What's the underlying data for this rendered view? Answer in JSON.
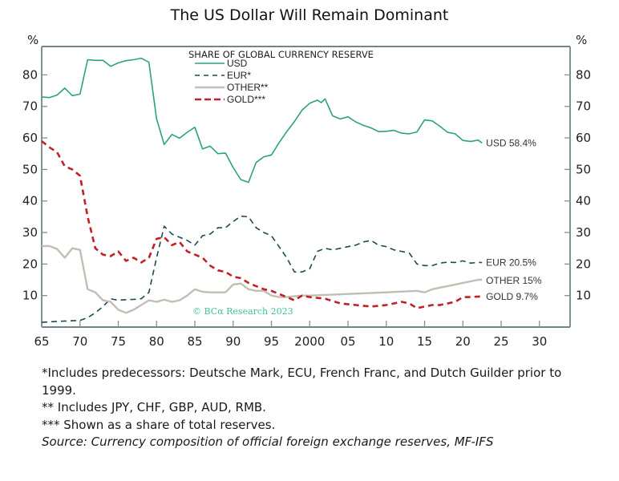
{
  "chart_data": {
    "type": "line",
    "title": "The US Dollar Will Remain Dominant",
    "legend_title": "SHARE OF GLOBAL CURRENCY RESERVE",
    "legend_position": "top-center",
    "ylabel_left": "%",
    "ylabel_right": "%",
    "xlabel": "",
    "xlim": [
      1965,
      2034
    ],
    "ylim": [
      0,
      89
    ],
    "y_ticks": [
      10,
      20,
      30,
      40,
      50,
      60,
      70,
      80
    ],
    "y_tick_labels": [
      "10",
      "20",
      "30",
      "40",
      "50",
      "60",
      "70",
      "80"
    ],
    "x_ticks": [
      1965,
      1970,
      1975,
      1980,
      1985,
      1990,
      1995,
      2000,
      2005,
      2010,
      2015,
      2020,
      2025,
      2030
    ],
    "x_tick_labels": [
      "65",
      "70",
      "75",
      "80",
      "85",
      "90",
      "95",
      "2000",
      "05",
      "10",
      "15",
      "20",
      "25",
      "30"
    ],
    "grid": false,
    "watermark": "© BCα Research 2023",
    "series": [
      {
        "name": "USD",
        "legend_label": "USD",
        "end_label": "USD 58.4%",
        "color": "#2aa37e",
        "style": "solid",
        "x": [
          1965,
          1966,
          1967,
          1968,
          1969,
          1970,
          1971,
          1972,
          1973,
          1974,
          1975,
          1976,
          1977,
          1978,
          1979,
          1980,
          1981,
          1982,
          1983,
          1984,
          1985,
          1986,
          1987,
          1988,
          1989,
          1990,
          1991,
          1992,
          1993,
          1994,
          1995,
          1996,
          1997,
          1998,
          1999,
          2000,
          2000.5,
          2001,
          2001.5,
          2002,
          2003,
          2004,
          2005,
          2006,
          2007,
          2008,
          2009,
          2010,
          2011,
          2012,
          2013,
          2014,
          2015,
          2016,
          2017,
          2018,
          2019,
          2020,
          2021,
          2022,
          2022.5
        ],
        "values": [
          73,
          72.8,
          73.6,
          75.8,
          73.4,
          73.9,
          84.8,
          84.6,
          84.6,
          82.7,
          83.8,
          84.5,
          84.8,
          85.3,
          84,
          66,
          57.9,
          61.1,
          59.9,
          61.8,
          63.4,
          56.5,
          57.4,
          55,
          55.2,
          50.6,
          46.8,
          45.9,
          52.2,
          54,
          54.6,
          58.5,
          62,
          65.2,
          68.8,
          71,
          71.5,
          72,
          71.2,
          72.4,
          67,
          66,
          66.7,
          65.1,
          64,
          63.2,
          62,
          62.1,
          62.4,
          61.5,
          61.3,
          61.9,
          65.7,
          65.4,
          63.7,
          61.8,
          61.3,
          59.2,
          58.9,
          59.3,
          58.4
        ]
      },
      {
        "name": "EUR",
        "legend_label": "EUR*",
        "end_label": "EUR 20.5%",
        "color": "#1e4a52",
        "style": "dashed",
        "x": [
          1965,
          1967,
          1969,
          1970,
          1971,
          1972,
          1973,
          1974,
          1975,
          1976,
          1977,
          1978,
          1979,
          1980,
          1981,
          1982,
          1983,
          1984,
          1985,
          1986,
          1987,
          1988,
          1989,
          1990,
          1991,
          1992,
          1993,
          1994,
          1995,
          1996,
          1997,
          1998,
          1999,
          2000,
          2001,
          2002,
          2003,
          2004,
          2005,
          2006,
          2007,
          2008,
          2009,
          2010,
          2011,
          2012,
          2013,
          2014,
          2015,
          2016,
          2017,
          2018,
          2019,
          2020,
          2021,
          2022,
          2022.5
        ],
        "values": [
          1.5,
          1.8,
          2,
          2.1,
          3,
          4.5,
          6.5,
          9,
          8.5,
          8.7,
          8.8,
          9,
          11,
          22,
          32,
          29.5,
          28.5,
          27.5,
          26,
          29,
          29.5,
          31.5,
          31.5,
          33.5,
          35.2,
          35,
          31.5,
          30,
          29,
          25.5,
          22,
          17.5,
          17.5,
          18.5,
          24,
          25,
          24.5,
          25,
          25.5,
          26,
          27,
          27.5,
          26,
          25.5,
          24.5,
          24,
          23.5,
          20,
          19.5,
          19.5,
          20.3,
          20.6,
          20.5,
          21,
          20.3,
          20.5,
          20.5
        ]
      },
      {
        "name": "OTHER",
        "legend_label": "OTHER**",
        "end_label": "OTHER 15%",
        "color": "#c4bdb3",
        "style": "solid",
        "x": [
          1965,
          1966,
          1967,
          1968,
          1969,
          1970,
          1971,
          1972,
          1973,
          1974,
          1975,
          1976,
          1977,
          1978,
          1979,
          1980,
          1981,
          1982,
          1983,
          1984,
          1985,
          1986,
          1987,
          1988,
          1989,
          1990,
          1991,
          1992,
          1993,
          1994,
          1995,
          1996,
          1997,
          1998,
          1999,
          2000,
          2005,
          2010,
          2014,
          2015,
          2016,
          2017,
          2018,
          2019,
          2020,
          2021,
          2022,
          2022.5
        ],
        "values": [
          25.7,
          25.7,
          24.8,
          22,
          25,
          24.5,
          12,
          11,
          8.5,
          8,
          5.5,
          4.5,
          5.5,
          7,
          8.5,
          8,
          8.7,
          8,
          8.5,
          10,
          12,
          11.2,
          11,
          11,
          11,
          13.5,
          13.8,
          12,
          11.5,
          11.5,
          10,
          9.5,
          9.5,
          9.8,
          10,
          10,
          10.5,
          11,
          11.5,
          11,
          12,
          12.5,
          13,
          13.5,
          14,
          14.5,
          15,
          15
        ]
      },
      {
        "name": "GOLD",
        "legend_label": "GOLD***",
        "end_label": "GOLD 9.7%",
        "color": "#c12026",
        "style": "dashed",
        "x": [
          1965,
          1966,
          1967,
          1968,
          1969,
          1970,
          1971,
          1972,
          1973,
          1974,
          1975,
          1976,
          1977,
          1978,
          1979,
          1980,
          1981,
          1982,
          1983,
          1984,
          1985,
          1986,
          1987,
          1988,
          1989,
          1990,
          1991,
          1992,
          1993,
          1994,
          1995,
          1996,
          1997,
          1998,
          1999,
          2000,
          2002,
          2004,
          2006,
          2008,
          2010,
          2011,
          2012,
          2013,
          2014,
          2015,
          2016,
          2017,
          2018,
          2019,
          2020,
          2021,
          2022,
          2022.5
        ],
        "values": [
          59,
          57,
          55.5,
          51,
          50,
          48,
          35,
          25,
          23,
          22.5,
          24,
          21,
          22,
          20.5,
          22,
          28,
          28.5,
          26,
          27,
          24,
          23,
          22,
          19.5,
          18,
          17.5,
          16,
          15.5,
          14,
          13,
          12,
          11.5,
          10.5,
          9.5,
          8.5,
          10,
          9.5,
          9,
          7.5,
          7,
          6.5,
          7,
          7.5,
          8,
          7.5,
          6,
          6.5,
          7,
          7,
          7.5,
          8,
          9.5,
          9.5,
          9.7,
          9.7
        ]
      }
    ]
  },
  "footnotes": {
    "note1": "*Includes predecessors: Deutsche Mark, ECU, French Franc, and Dutch Guilder prior to 1999.",
    "note2": "** Includes JPY, CHF, GBP, AUD, RMB.",
    "note3": "*** Shown as a share of total reserves.",
    "source": "Source: Currency composition of official foreign exchange reserves, MF-IFS"
  }
}
